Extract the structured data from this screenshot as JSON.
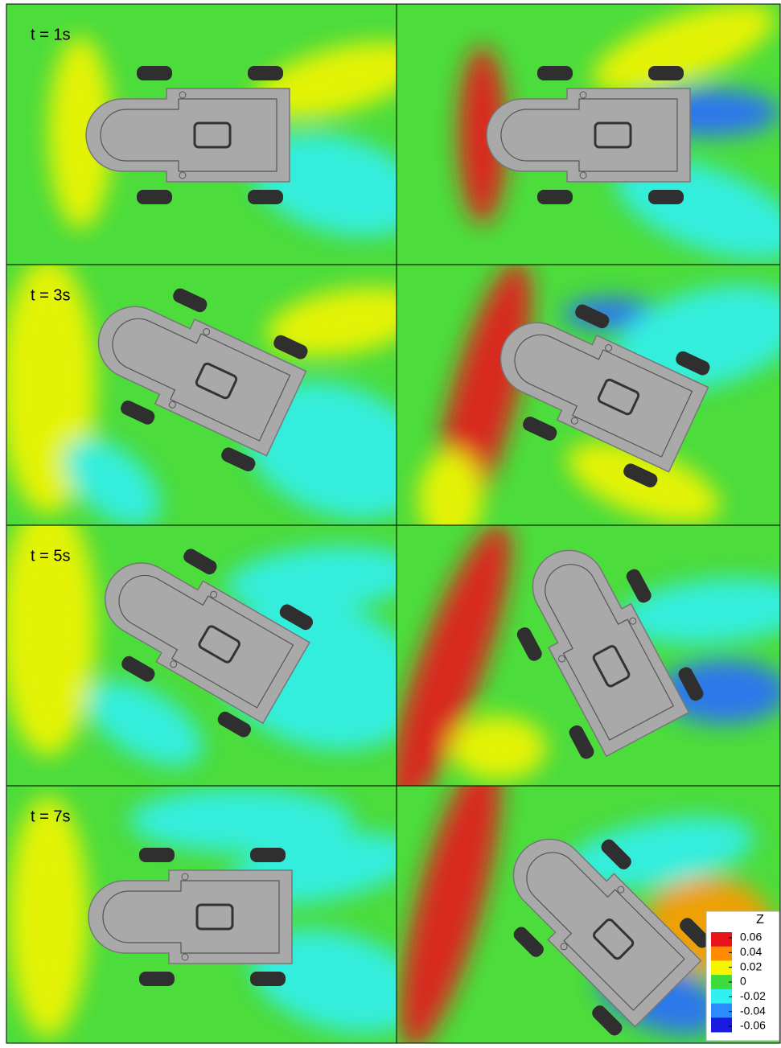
{
  "rows": [
    "t = 1s",
    "t = 3s",
    "t = 5s",
    "t = 7s"
  ],
  "colorbar": {
    "title": "Z",
    "ticks": [
      0.06,
      0.04,
      0.02,
      0,
      -0.02,
      -0.04,
      -0.06
    ],
    "colors": [
      "#e8141a",
      "#ff8c00",
      "#f5f500",
      "#3cdc3c",
      "#30f0f0",
      "#2a8cff",
      "#1a1ae0"
    ]
  }
}
